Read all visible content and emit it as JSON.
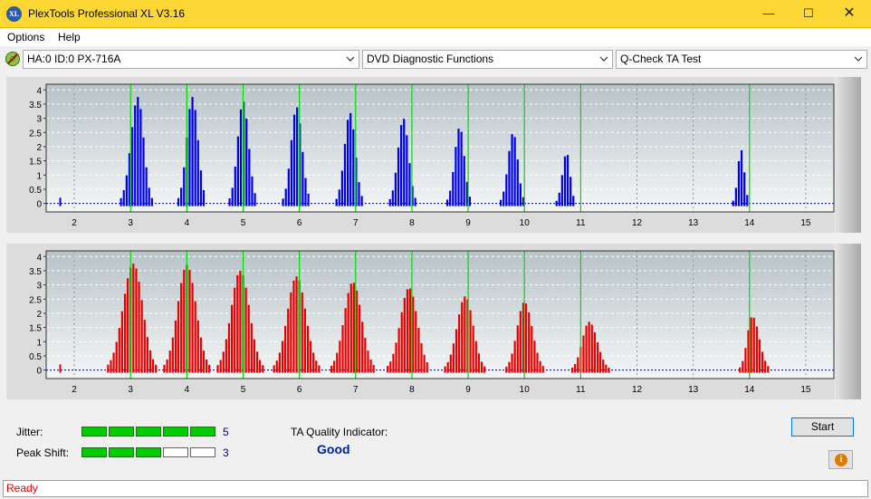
{
  "window": {
    "title": "PlexTools Professional XL V3.16",
    "icon_text": "XL",
    "min_icon": "minimize-icon",
    "max_icon": "maximize-icon",
    "close_icon": "close-icon"
  },
  "menu": {
    "items": [
      "Options",
      "Help"
    ]
  },
  "toolbar": {
    "drive": "HA:0 ID:0  PX-716A",
    "function": "DVD Diagnostic Functions",
    "test": "Q-Check TA Test"
  },
  "colors": {
    "lands": "#0000e6",
    "pits": "#e60000",
    "marker": "#00dd00",
    "titlebar": "#fdd835"
  },
  "chart_data": [
    {
      "type": "bar",
      "name": "top",
      "color": "#0000e6",
      "xlim": [
        1.5,
        15.5
      ],
      "ylim": [
        -0.3,
        4.2
      ],
      "yticks": [
        "0",
        "0.5",
        "1",
        "1.5",
        "2",
        "2.5",
        "3",
        "3.5",
        "4"
      ],
      "xticks": [
        "2",
        "3",
        "4",
        "5",
        "6",
        "7",
        "8",
        "9",
        "10",
        "11",
        "12",
        "13",
        "14",
        "15"
      ],
      "markers": [
        3,
        4,
        5,
        6,
        7,
        8,
        9,
        10,
        11,
        14
      ],
      "peaks": [
        {
          "center": 3.13,
          "height": 3.75,
          "left": 0.3,
          "right": 0.25
        },
        {
          "center": 4.1,
          "height": 3.75,
          "left": 0.25,
          "right": 0.24
        },
        {
          "center": 5.0,
          "height": 3.6,
          "left": 0.24,
          "right": 0.24
        },
        {
          "center": 5.95,
          "height": 3.4,
          "left": 0.24,
          "right": 0.24
        },
        {
          "center": 6.9,
          "height": 3.2,
          "left": 0.24,
          "right": 0.23
        },
        {
          "center": 7.85,
          "height": 3.0,
          "left": 0.24,
          "right": 0.22
        },
        {
          "center": 8.85,
          "height": 2.7,
          "left": 0.22,
          "right": 0.2
        },
        {
          "center": 9.8,
          "height": 2.5,
          "left": 0.22,
          "right": 0.2
        },
        {
          "center": 10.75,
          "height": 1.8,
          "left": 0.18,
          "right": 0.15
        },
        {
          "center": 13.85,
          "height": 1.9,
          "left": 0.14,
          "right": 0.14
        }
      ]
    },
    {
      "type": "bar",
      "name": "bottom",
      "color": "#e60000",
      "xlim": [
        1.5,
        15.5
      ],
      "ylim": [
        -0.3,
        4.2
      ],
      "yticks": [
        "0",
        "0.5",
        "1",
        "1.5",
        "2",
        "2.5",
        "3",
        "3.5",
        "4"
      ],
      "xticks": [
        "2",
        "3",
        "4",
        "5",
        "6",
        "7",
        "8",
        "9",
        "10",
        "11",
        "12",
        "13",
        "14",
        "15"
      ],
      "markers": [
        3,
        4,
        5,
        6,
        7,
        8,
        9,
        10,
        11,
        14
      ],
      "peaks": [
        {
          "center": 3.05,
          "height": 3.75,
          "left": 0.45,
          "right": 0.4
        },
        {
          "center": 4.0,
          "height": 3.7,
          "left": 0.4,
          "right": 0.4
        },
        {
          "center": 4.95,
          "height": 3.5,
          "left": 0.4,
          "right": 0.4
        },
        {
          "center": 5.95,
          "height": 3.3,
          "left": 0.4,
          "right": 0.4
        },
        {
          "center": 6.95,
          "height": 3.1,
          "left": 0.38,
          "right": 0.38
        },
        {
          "center": 7.95,
          "height": 2.9,
          "left": 0.38,
          "right": 0.36
        },
        {
          "center": 8.95,
          "height": 2.6,
          "left": 0.36,
          "right": 0.34
        },
        {
          "center": 10.0,
          "height": 2.4,
          "left": 0.32,
          "right": 0.34
        },
        {
          "center": 11.15,
          "height": 1.7,
          "left": 0.3,
          "right": 0.35
        },
        {
          "center": 14.05,
          "height": 1.9,
          "left": 0.22,
          "right": 0.3
        }
      ]
    }
  ],
  "metrics": {
    "jitter_label": "Jitter:",
    "jitter_value": "5",
    "jitter_level": 5,
    "peak_label": "Peak Shift:",
    "peak_value": "3",
    "peak_level": 3,
    "max_level": 5,
    "ta_label": "TA Quality Indicator:",
    "ta_value": "Good"
  },
  "buttons": {
    "start": "Start",
    "info_icon": "info-icon"
  },
  "status": {
    "text": "Ready"
  }
}
